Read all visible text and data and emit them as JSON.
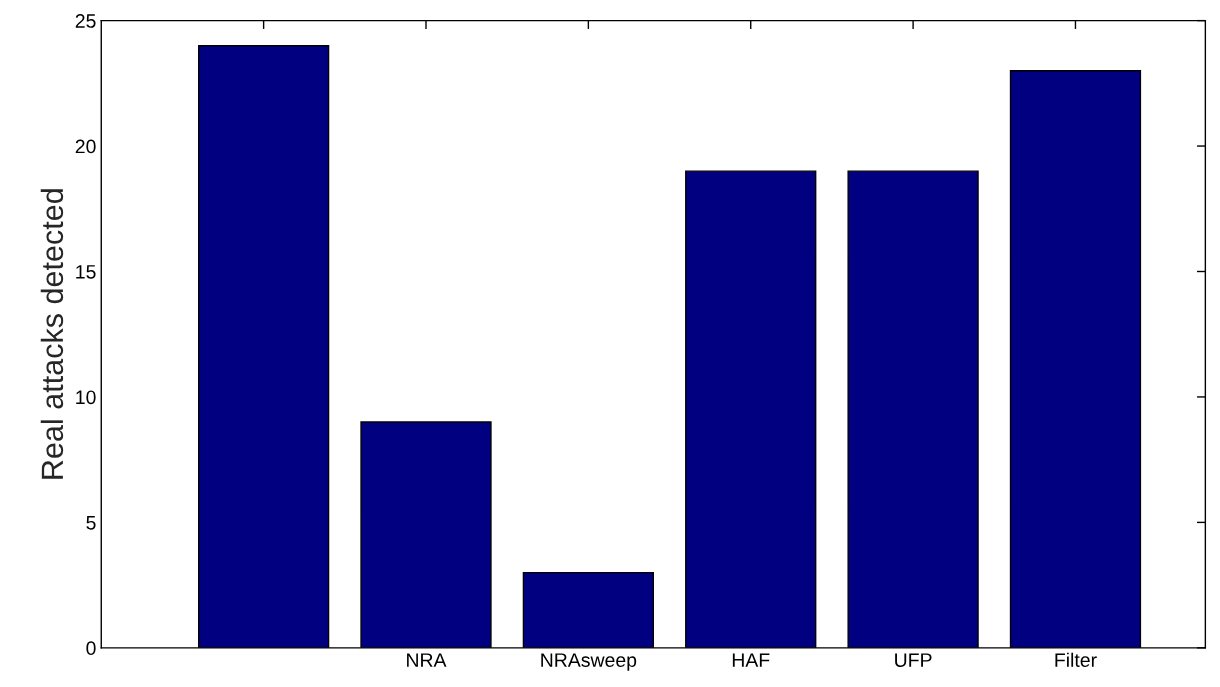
{
  "chart_data": {
    "type": "bar",
    "ylabel": "Real attacks detected",
    "categories": [
      null,
      "NRA",
      "NRAsweep",
      "HAF",
      "UFP",
      "Filter"
    ],
    "values": [
      24,
      9,
      3,
      19,
      19,
      23
    ],
    "color": "#000080",
    "ylim": [
      0,
      25
    ],
    "yticks": [
      0,
      5,
      10,
      15,
      20,
      25
    ],
    "grid": false
  }
}
